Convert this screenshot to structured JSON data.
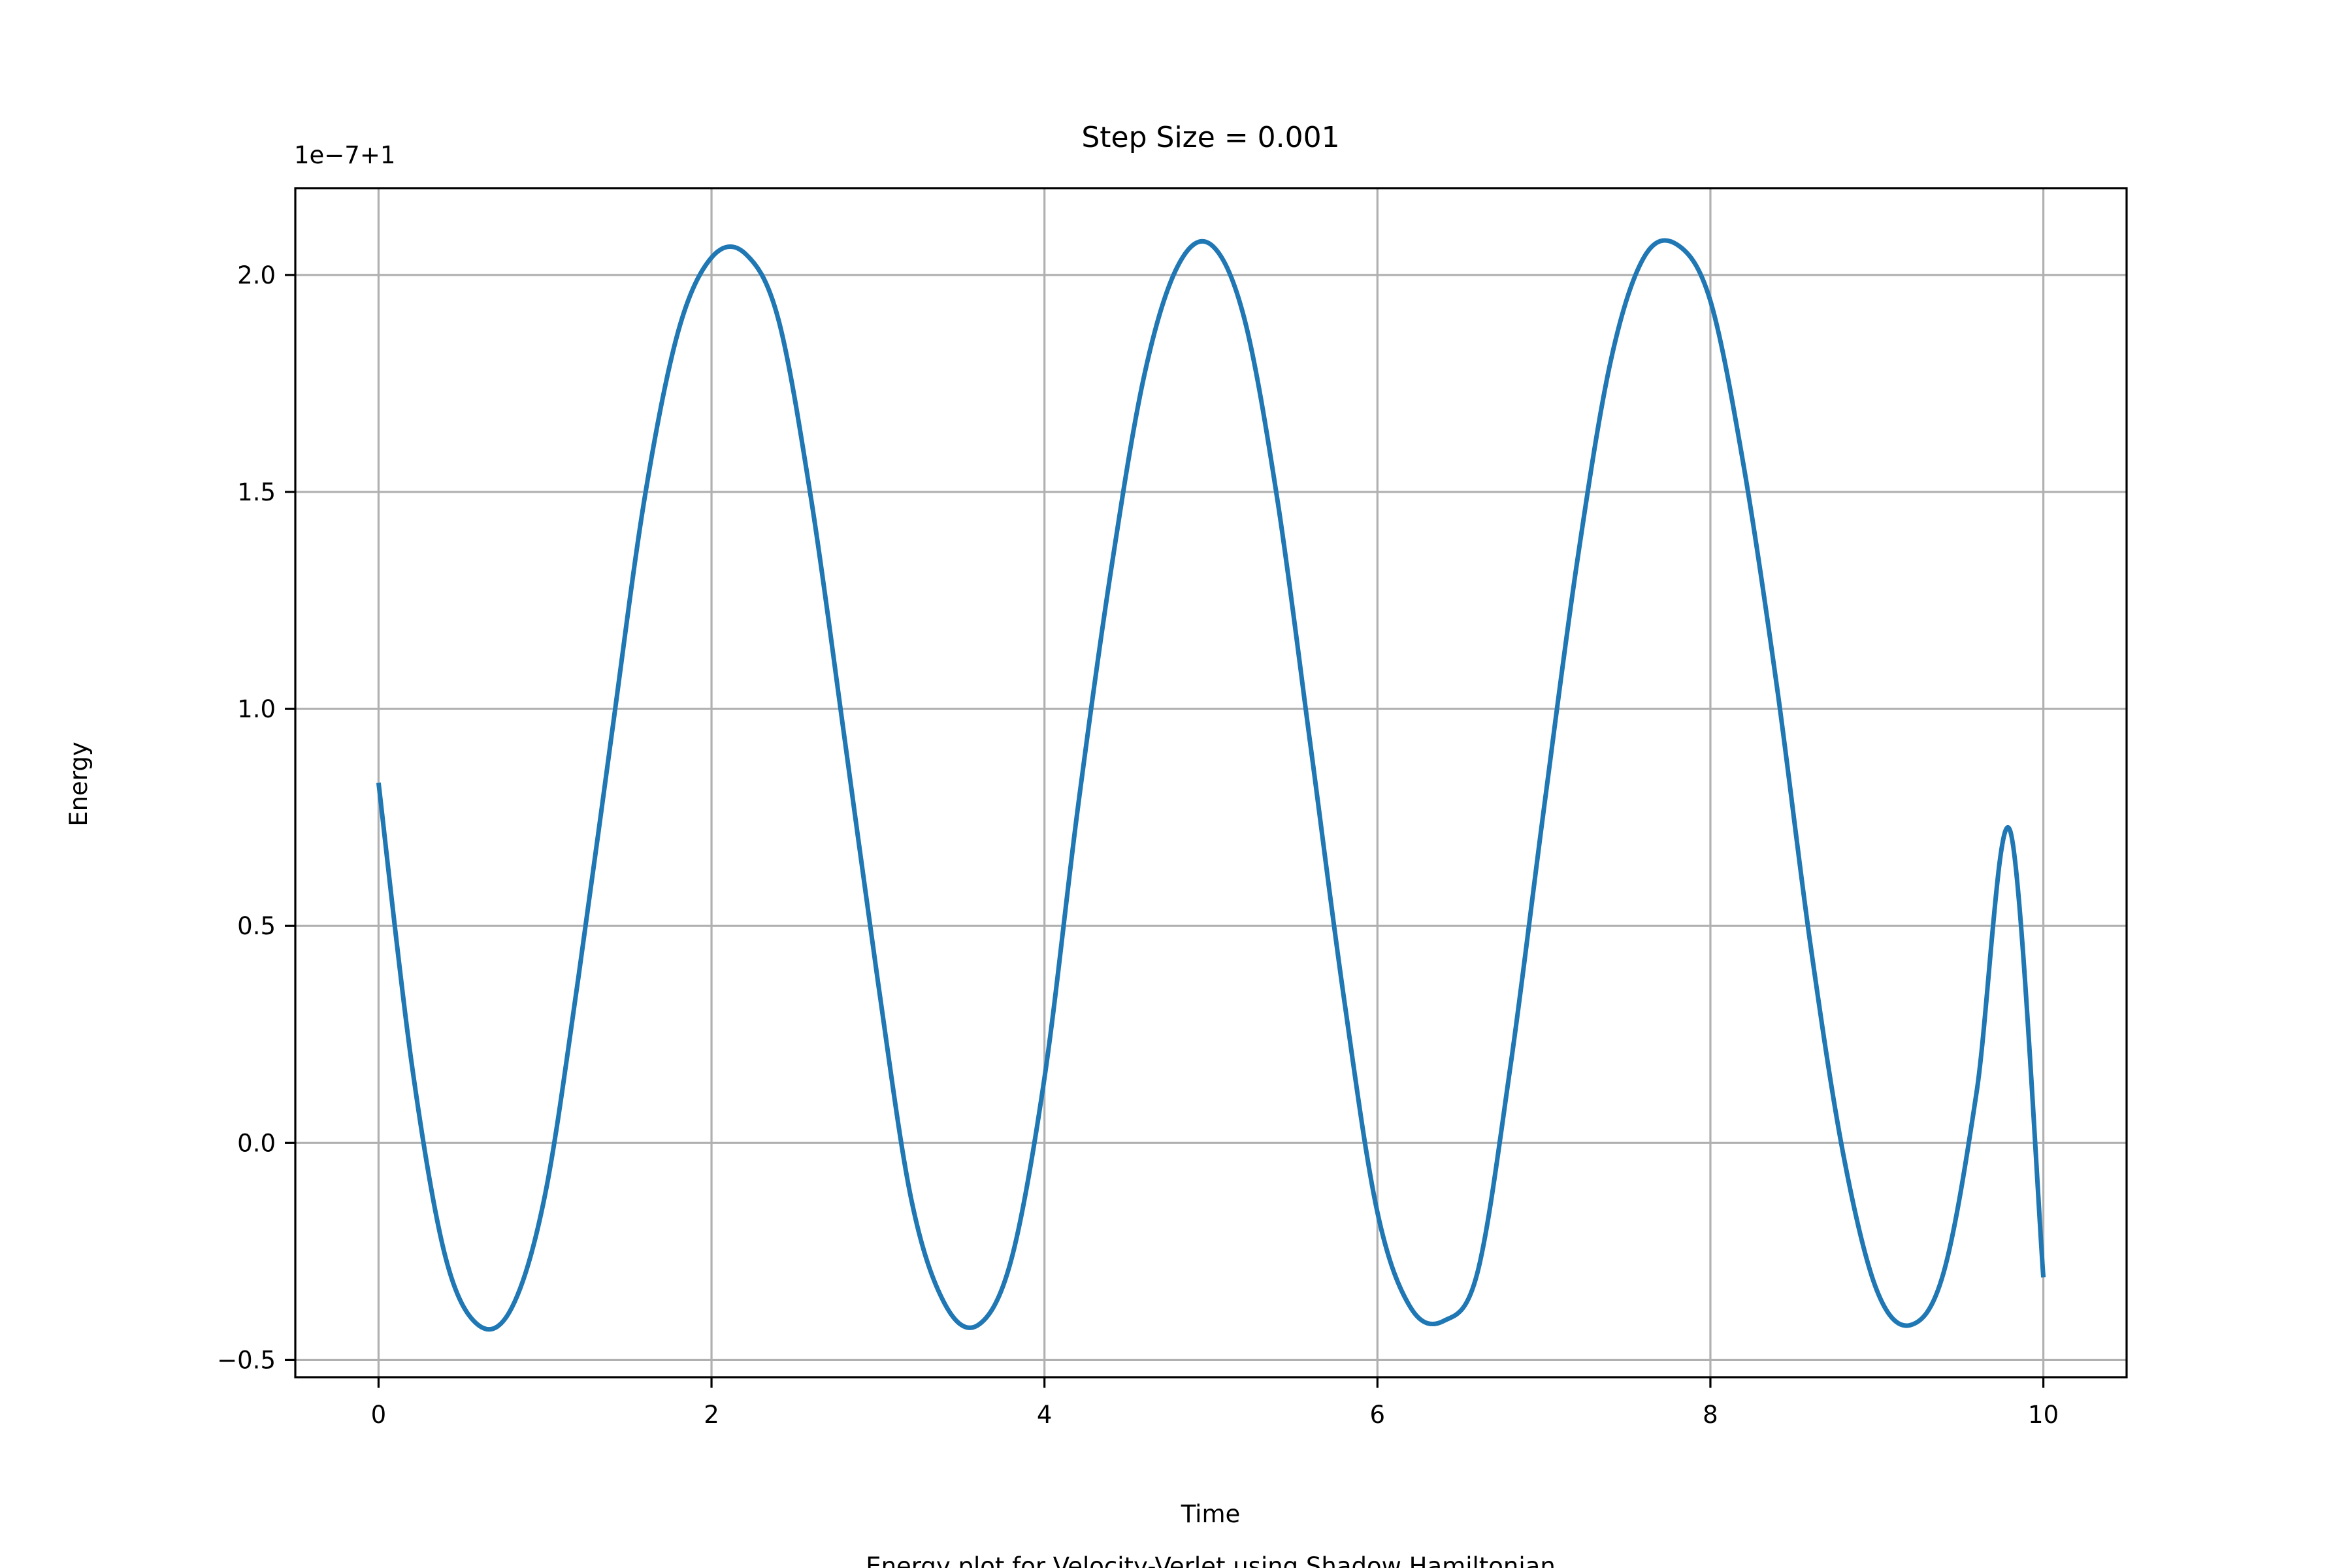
{
  "chart_data": {
    "type": "line",
    "title": "Step Size = 0.001",
    "xlabel": "Time",
    "ylabel": "Energy",
    "caption": "Energy plot for Velocity-Verlet using Shadow Hamiltonian",
    "offset_text": "1e−7+1",
    "xlim": [
      -0.5,
      10.5
    ],
    "ylim": [
      -0.54,
      2.2
    ],
    "xticks": [
      {
        "value": 0,
        "label": "0"
      },
      {
        "value": 2,
        "label": "2"
      },
      {
        "value": 4,
        "label": "4"
      },
      {
        "value": 6,
        "label": "6"
      },
      {
        "value": 8,
        "label": "8"
      },
      {
        "value": 10,
        "label": "10"
      }
    ],
    "yticks": [
      {
        "value": -0.5,
        "label": "−0.5"
      },
      {
        "value": 0.0,
        "label": "0.0"
      },
      {
        "value": 0.5,
        "label": "0.5"
      },
      {
        "value": 1.0,
        "label": "1.0"
      },
      {
        "value": 1.5,
        "label": "1.5"
      },
      {
        "value": 2.0,
        "label": "2.0"
      }
    ],
    "grid": true,
    "series": [
      {
        "color": "#1f77b4",
        "x": [
          0.0,
          0.2,
          0.4,
          0.6,
          0.8,
          1.0,
          1.2,
          1.4,
          1.6,
          1.8,
          2.0,
          2.2,
          2.4,
          2.6,
          2.8,
          3.0,
          3.2,
          3.4,
          3.6,
          3.8,
          4.0,
          4.2,
          4.4,
          4.6,
          4.8,
          5.0,
          5.2,
          5.4,
          5.6,
          5.8,
          6.0,
          6.2,
          6.4,
          6.6,
          6.8,
          7.0,
          7.2,
          7.4,
          7.6,
          7.8,
          8.0,
          8.2,
          8.4,
          8.6,
          8.8,
          9.0,
          9.2,
          9.4,
          9.6,
          9.8,
          10.0
        ],
        "y": [
          0.83,
          0.18,
          -0.26,
          -0.42,
          -0.38,
          -0.12,
          0.38,
          0.94,
          1.49,
          1.87,
          2.04,
          2.05,
          1.9,
          1.48,
          0.93,
          0.37,
          -0.13,
          -0.37,
          -0.42,
          -0.27,
          0.15,
          0.77,
          1.32,
          1.77,
          2.02,
          2.07,
          1.9,
          1.48,
          0.91,
          0.33,
          -0.16,
          -0.38,
          -0.41,
          -0.3,
          0.18,
          0.77,
          1.34,
          1.8,
          2.04,
          2.07,
          1.94,
          1.56,
          1.05,
          0.46,
          -0.03,
          -0.34,
          -0.42,
          -0.3,
          0.12,
          0.72,
          -0.31
        ]
      }
    ]
  }
}
